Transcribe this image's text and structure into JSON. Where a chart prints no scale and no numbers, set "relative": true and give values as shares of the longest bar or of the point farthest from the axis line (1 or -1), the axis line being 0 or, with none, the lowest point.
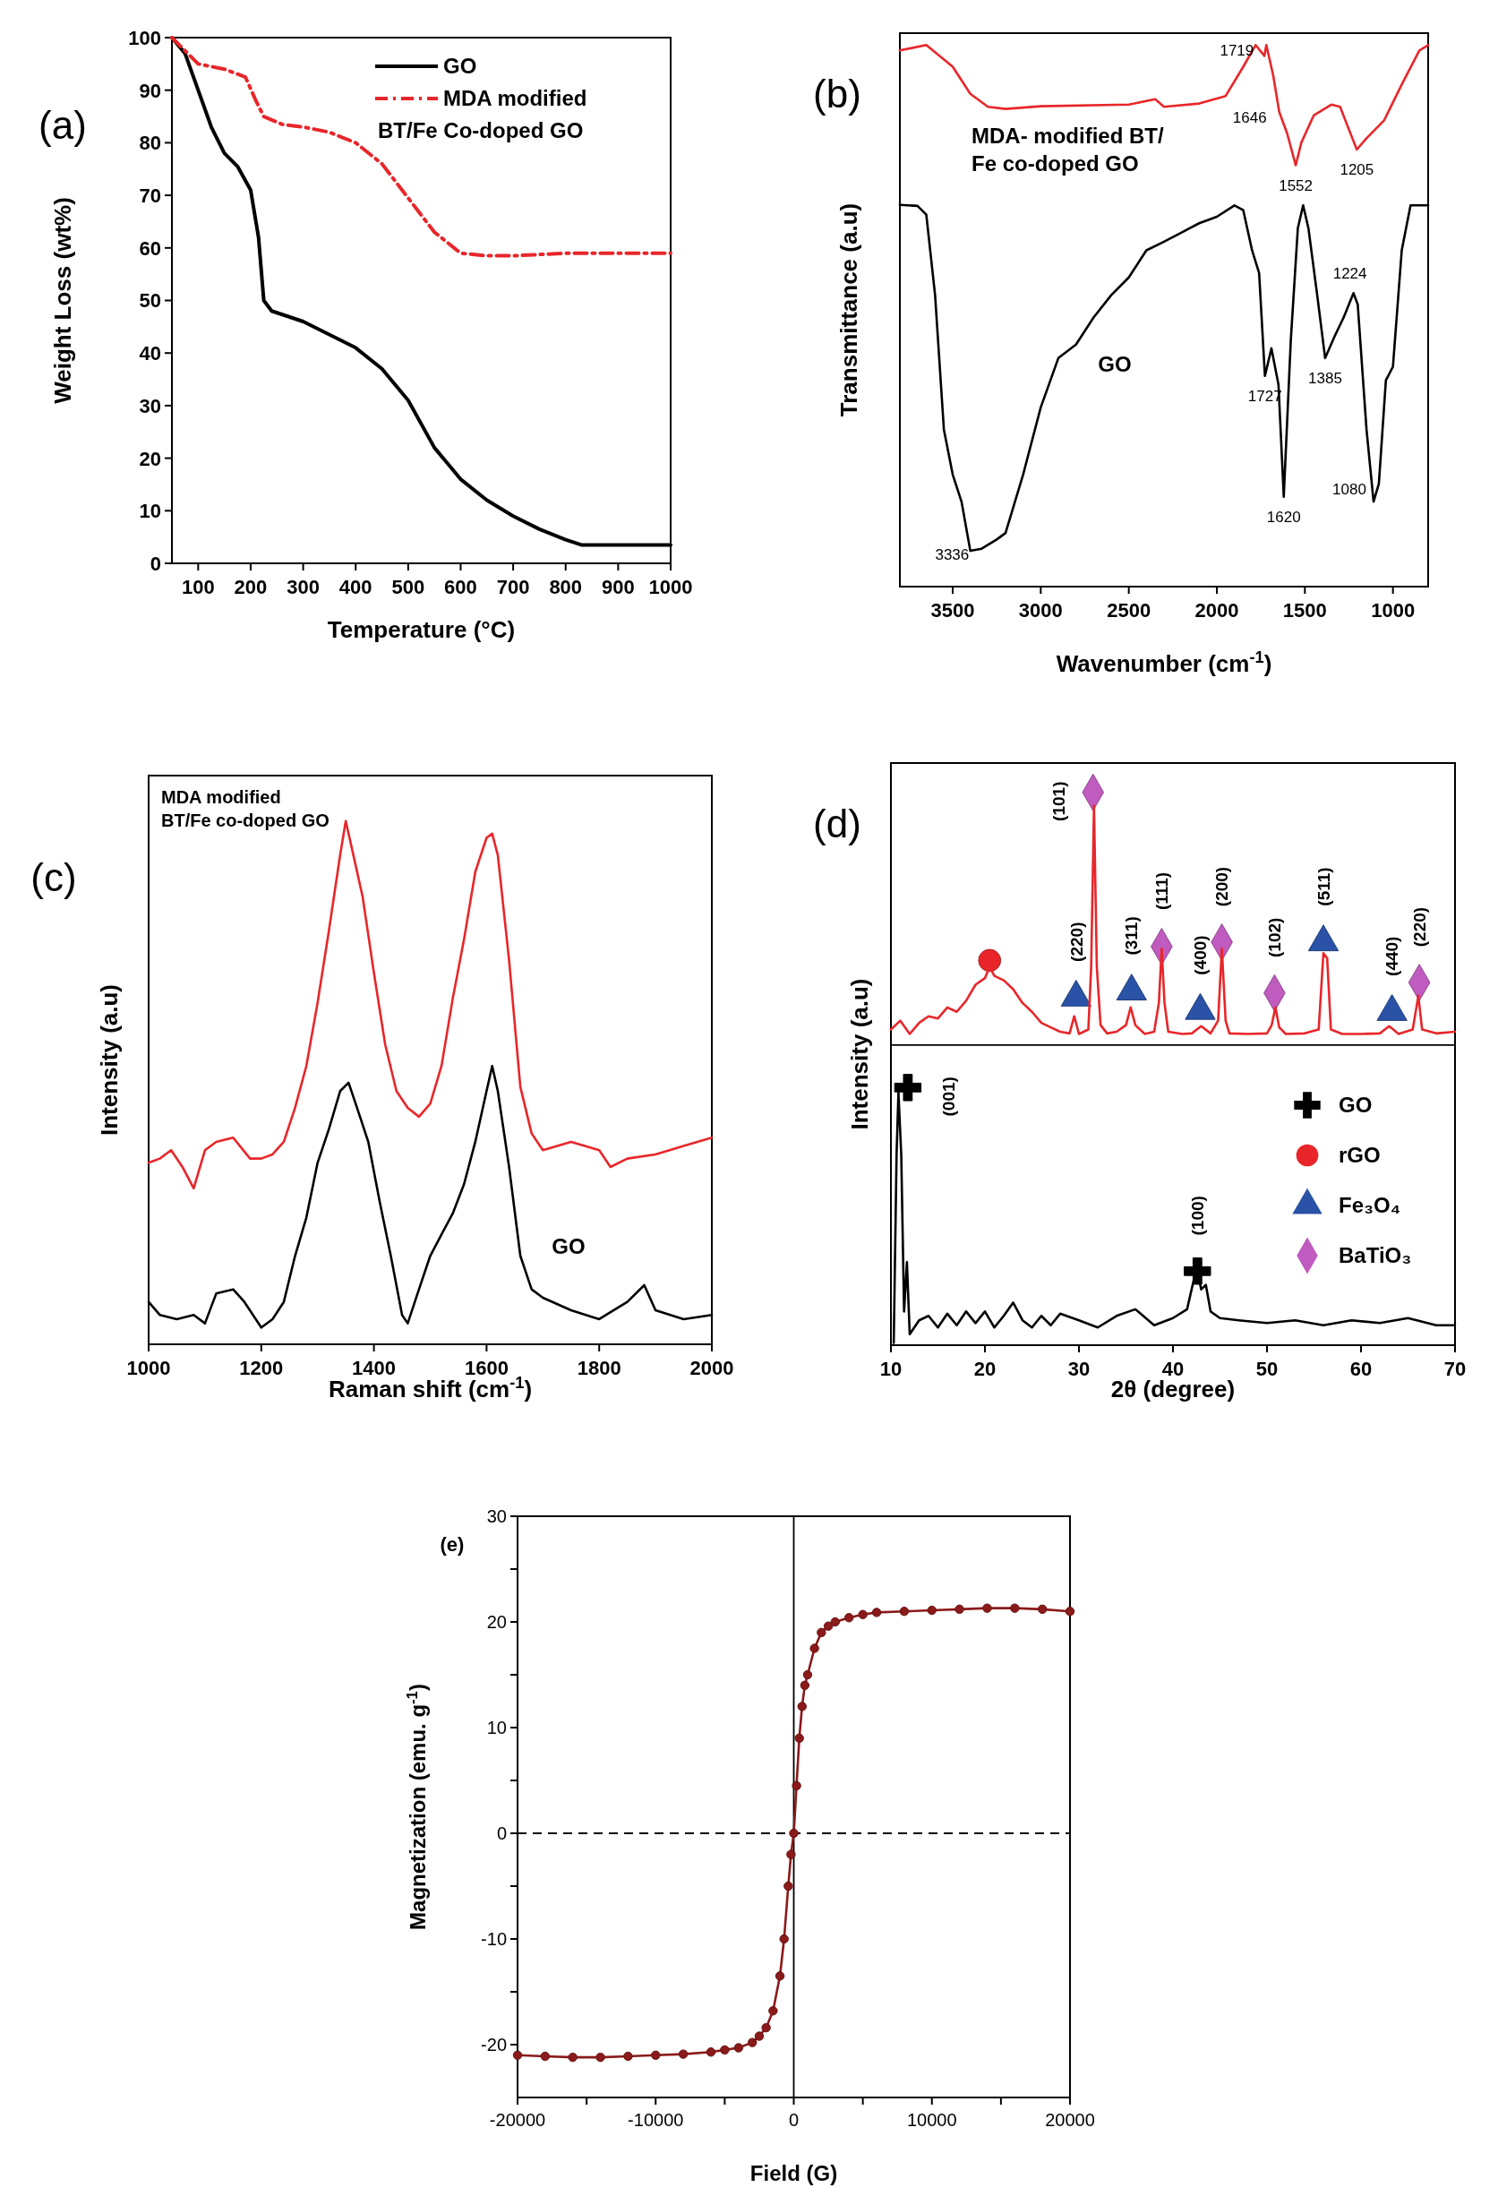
{
  "chart_data": [
    {
      "type": "line",
      "title": "(a)",
      "xlabel": "Temperature (°C)",
      "ylabel": "Weight Loss (wt%)",
      "xlim": [
        50,
        1000
      ],
      "xticks": [
        100,
        200,
        300,
        400,
        500,
        600,
        700,
        800,
        900,
        1000
      ],
      "ylim": [
        0,
        100
      ],
      "yticks": [
        0,
        10,
        20,
        30,
        40,
        50,
        60,
        70,
        80,
        90,
        100
      ],
      "legend": "top right",
      "series": [
        {
          "name": "GO",
          "color": "#000000",
          "line_style": "solid",
          "x": [
            50,
            75,
            100,
            125,
            150,
            175,
            200,
            215,
            225,
            240,
            300,
            400,
            450,
            500,
            550,
            600,
            650,
            700,
            750,
            800,
            830,
            900,
            1000
          ],
          "values": [
            100,
            97,
            90,
            83,
            78,
            75.5,
            71,
            62,
            50,
            48,
            46,
            41,
            37,
            31,
            22,
            16,
            12,
            9,
            6.5,
            4.5,
            3.5,
            3.5,
            3.5
          ]
        },
        {
          "name": "MDA modified BT/Fe Co-doped GO",
          "color": "#e8262a",
          "line_style": "dashed",
          "x": [
            50,
            100,
            150,
            190,
            210,
            225,
            260,
            300,
            350,
            400,
            450,
            500,
            550,
            600,
            650,
            700,
            800,
            900,
            1000
          ],
          "values": [
            100,
            95,
            94,
            92.5,
            88,
            85,
            83.5,
            83,
            82,
            80,
            76,
            69.5,
            63,
            59,
            58.5,
            58.5,
            59,
            59,
            59
          ]
        }
      ]
    },
    {
      "type": "line",
      "title": "(b)",
      "xlabel": "Wavenumber (cm$^{-1}$)",
      "ylabel": "Transmittance (a.u)",
      "relative": true,
      "xlim": [
        3800,
        800
      ],
      "xticks": [
        3500,
        3000,
        2500,
        2000,
        1500,
        1000
      ],
      "annotations": [
        {
          "text": "1719",
          "x": 1719,
          "y": 1.0
        },
        {
          "text": "1646",
          "x": 1646,
          "y": 0.877
        },
        {
          "text": "1552",
          "x": 1552,
          "y": 0.778
        },
        {
          "text": "1205",
          "x": 1205,
          "y": 0.807
        },
        {
          "text": "1224",
          "x": 1224,
          "y": 0.542
        },
        {
          "text": "1727",
          "x": 1727,
          "y": 0.389
        },
        {
          "text": "1385",
          "x": 1385,
          "y": 0.422
        },
        {
          "text": "1620",
          "x": 1620,
          "y": 0.166
        },
        {
          "text": "1080",
          "x": 1080,
          "y": 0.19
        },
        {
          "text": "3336",
          "x": 3336,
          "y": 0.07
        }
      ],
      "series": [
        {
          "name": "MDA- modified BT/ Fe co-doped GO",
          "color": "#e8262a",
          "x": [
            3800,
            3650,
            3500,
            3400,
            3300,
            3200,
            3000,
            2500,
            2350,
            2300,
            2100,
            1950,
            1850,
            1780,
            1730,
            1719,
            1680,
            1646,
            1600,
            1552,
            1520,
            1450,
            1350,
            1300,
            1250,
            1205,
            1150,
            1050,
            950,
            850,
            800
          ],
          "values": [
            0.99,
            1.0,
            0.96,
            0.91,
            0.886,
            0.882,
            0.887,
            0.89,
            0.9,
            0.886,
            0.892,
            0.906,
            0.96,
            1.0,
            0.98,
            1.0,
            0.944,
            0.877,
            0.836,
            0.778,
            0.82,
            0.87,
            0.89,
            0.886,
            0.844,
            0.807,
            0.828,
            0.861,
            0.927,
            0.99,
            1.0
          ]
        },
        {
          "name": "GO",
          "color": "#000000",
          "x": [
            3800,
            3700,
            3650,
            3600,
            3550,
            3500,
            3450,
            3400,
            3336,
            3250,
            3200,
            3100,
            3000,
            2900,
            2800,
            2700,
            2600,
            2500,
            2400,
            2300,
            2200,
            2100,
            2000,
            1900,
            1850,
            1800,
            1760,
            1727,
            1690,
            1650,
            1620,
            1580,
            1540,
            1510,
            1480,
            1430,
            1385,
            1330,
            1280,
            1224,
            1200,
            1150,
            1110,
            1080,
            1040,
            1000,
            950,
            900,
            850,
            800
          ],
          "values": [
            0.705,
            0.703,
            0.687,
            0.538,
            0.29,
            0.207,
            0.157,
            0.066,
            0.07,
            0.087,
            0.099,
            0.207,
            0.331,
            0.422,
            0.447,
            0.497,
            0.538,
            0.571,
            0.621,
            0.637,
            0.654,
            0.671,
            0.683,
            0.704,
            0.695,
            0.621,
            0.579,
            0.389,
            0.44,
            0.373,
            0.166,
            0.455,
            0.662,
            0.704,
            0.662,
            0.538,
            0.422,
            0.463,
            0.497,
            0.542,
            0.521,
            0.29,
            0.157,
            0.19,
            0.381,
            0.406,
            0.621,
            0.704,
            0.704,
            0.704
          ]
        }
      ]
    },
    {
      "type": "line",
      "title": "(c)",
      "xlabel": "Raman shift (cm$^{-1}$)",
      "ylabel": "Intensity (a.u)",
      "relative": true,
      "xlim": [
        1000,
        2000
      ],
      "xticks": [
        1000,
        1200,
        1400,
        1600,
        1800,
        2000
      ],
      "series": [
        {
          "name": "MDA modified BT/Fe co-doped GO",
          "color": "#e8262a",
          "x": [
            1000,
            1020,
            1040,
            1060,
            1080,
            1100,
            1120,
            1150,
            1180,
            1200,
            1220,
            1240,
            1260,
            1280,
            1300,
            1320,
            1340,
            1350,
            1360,
            1380,
            1400,
            1420,
            1440,
            1460,
            1480,
            1500,
            1520,
            1540,
            1560,
            1580,
            1600,
            1610,
            1620,
            1640,
            1660,
            1680,
            1700,
            1750,
            1800,
            1820,
            1850,
            1900,
            1950,
            2000
          ],
          "values": [
            0.347,
            0.355,
            0.371,
            0.339,
            0.298,
            0.371,
            0.387,
            0.395,
            0.355,
            0.355,
            0.363,
            0.387,
            0.452,
            0.532,
            0.653,
            0.79,
            0.935,
            1.0,
            0.952,
            0.855,
            0.71,
            0.573,
            0.484,
            0.452,
            0.435,
            0.46,
            0.532,
            0.661,
            0.774,
            0.903,
            0.968,
            0.976,
            0.935,
            0.734,
            0.492,
            0.403,
            0.371,
            0.387,
            0.371,
            0.339,
            0.355,
            0.363,
            0.379,
            0.395
          ]
        },
        {
          "name": "GO",
          "color": "#000000",
          "x": [
            1000,
            1020,
            1050,
            1080,
            1100,
            1120,
            1150,
            1170,
            1200,
            1220,
            1240,
            1260,
            1280,
            1300,
            1320,
            1340,
            1355,
            1370,
            1390,
            1410,
            1430,
            1450,
            1460,
            1480,
            1500,
            1520,
            1540,
            1560,
            1580,
            1600,
            1610,
            1620,
            1640,
            1660,
            1680,
            1700,
            1750,
            1800,
            1850,
            1880,
            1900,
            1950,
            2000
          ],
          "values": [
            0.081,
            0.056,
            0.048,
            0.056,
            0.04,
            0.097,
            0.105,
            0.081,
            0.032,
            0.048,
            0.081,
            0.169,
            0.242,
            0.347,
            0.411,
            0.484,
            0.5,
            0.452,
            0.387,
            0.274,
            0.169,
            0.056,
            0.04,
            0.105,
            0.169,
            0.21,
            0.25,
            0.306,
            0.387,
            0.484,
            0.532,
            0.484,
            0.339,
            0.169,
            0.105,
            0.089,
            0.065,
            0.048,
            0.081,
            0.113,
            0.065,
            0.048,
            0.056
          ]
        }
      ]
    },
    {
      "type": "line",
      "title": "(d)",
      "xlabel": "2θ (degree)",
      "ylabel": "Intensity (a.u)",
      "relative": true,
      "xlim": [
        10,
        70
      ],
      "xticks": [
        10,
        20,
        30,
        40,
        50,
        60,
        70
      ],
      "legend": "right",
      "ref_lines": [
        {
          "axis": "y",
          "value": 0.543,
          "color": "#000000",
          "line_style": "solid"
        }
      ],
      "annotations": [
        {
          "text": "(101)",
          "x": 31.5,
          "y": 1.0
        },
        {
          "text": "(220)",
          "x": 29.7,
          "y": 0.629
        },
        {
          "text": "(311)",
          "x": 35.6,
          "y": 0.64
        },
        {
          "text": "(111)",
          "x": 38.8,
          "y": 0.721
        },
        {
          "text": "(400)",
          "x": 42.9,
          "y": 0.605
        },
        {
          "text": "(200)",
          "x": 45.2,
          "y": 0.729
        },
        {
          "text": "(102)",
          "x": 50.8,
          "y": 0.637
        },
        {
          "text": "(511)",
          "x": 56.0,
          "y": 0.729
        },
        {
          "text": "(440)",
          "x": 63.3,
          "y": 0.603
        },
        {
          "text": "(220)",
          "x": 66.2,
          "y": 0.656
        },
        {
          "text": "(001)",
          "x": 11.8,
          "y": 0.466
        },
        {
          "text": "(100)",
          "x": 42.6,
          "y": 0.134
        }
      ],
      "series": [
        {
          "color": "#e8262a",
          "x": [
            10,
            11,
            12,
            13,
            14,
            15,
            16,
            17,
            18,
            19,
            20,
            20.5,
            21,
            22,
            23,
            24,
            25,
            26,
            27,
            28,
            29,
            29.5,
            30,
            31,
            31.3,
            31.6,
            31.9,
            32.3,
            33,
            34,
            35,
            35.5,
            36,
            37,
            38,
            38.5,
            38.8,
            39.1,
            39.5,
            41,
            42,
            43,
            44,
            44.8,
            45.2,
            45.6,
            46,
            48,
            50,
            50.5,
            50.9,
            51.3,
            52,
            54,
            55.5,
            56,
            56.4,
            56.8,
            58,
            60,
            62,
            63,
            64,
            65.5,
            66.1,
            66.5,
            68,
            70
          ],
          "values": [
            0.571,
            0.587,
            0.563,
            0.583,
            0.595,
            0.591,
            0.611,
            0.603,
            0.623,
            0.652,
            0.664,
            0.684,
            0.668,
            0.66,
            0.644,
            0.619,
            0.603,
            0.583,
            0.575,
            0.567,
            0.564,
            0.595,
            0.563,
            0.571,
            0.684,
            0.976,
            0.684,
            0.579,
            0.564,
            0.567,
            0.579,
            0.611,
            0.579,
            0.563,
            0.567,
            0.619,
            0.717,
            0.619,
            0.567,
            0.563,
            0.564,
            0.577,
            0.564,
            0.587,
            0.717,
            0.587,
            0.564,
            0.563,
            0.564,
            0.579,
            0.611,
            0.575,
            0.563,
            0.564,
            0.571,
            0.709,
            0.7,
            0.571,
            0.563,
            0.563,
            0.564,
            0.577,
            0.563,
            0.571,
            0.632,
            0.571,
            0.564,
            0.567
          ]
        },
        {
          "color": "#000000",
          "x": [
            10.3,
            10.6,
            10.8,
            11.1,
            11.4,
            11.7,
            12,
            13,
            14,
            15,
            16,
            17,
            18,
            19,
            20,
            21,
            22,
            23,
            24,
            25,
            26,
            27,
            28,
            30,
            32,
            34,
            36,
            38,
            40,
            41.5,
            42.2,
            42.6,
            43,
            43.5,
            44,
            45,
            47,
            50,
            53,
            56,
            59,
            62,
            65,
            68,
            70
          ],
          "values": [
            0.004,
            0.344,
            0.457,
            0.344,
            0.061,
            0.15,
            0.02,
            0.045,
            0.053,
            0.032,
            0.057,
            0.036,
            0.061,
            0.04,
            0.061,
            0.032,
            0.053,
            0.077,
            0.045,
            0.032,
            0.053,
            0.036,
            0.057,
            0.045,
            0.032,
            0.053,
            0.065,
            0.036,
            0.049,
            0.065,
            0.117,
            0.134,
            0.101,
            0.109,
            0.061,
            0.049,
            0.045,
            0.04,
            0.045,
            0.036,
            0.045,
            0.04,
            0.049,
            0.036,
            0.036
          ]
        },
        {
          "type": "scatter",
          "name": "GO",
          "color": "#000000",
          "marker": "cross",
          "x": [
            11.8,
            42.6
          ],
          "values": [
            0.466,
            0.134
          ]
        },
        {
          "type": "scatter",
          "name": "rGO",
          "color": "#e8262a",
          "marker": "circle",
          "x": [
            20.5
          ],
          "values": [
            0.696
          ]
        },
        {
          "type": "scatter",
          "name": "Fe₃O₄",
          "color": "#2a52a6",
          "marker": "triangle",
          "x": [
            29.7,
            35.6,
            42.9,
            56.0,
            63.3
          ],
          "values": [
            0.629,
            0.64,
            0.605,
            0.729,
            0.603
          ]
        },
        {
          "type": "scatter",
          "name": "BaTiO₃",
          "color": "#c05bbf",
          "marker": "diamond",
          "x": [
            31.5,
            38.8,
            45.2,
            50.8,
            66.2
          ],
          "values": [
            1.0,
            0.721,
            0.729,
            0.637,
            0.656
          ]
        }
      ]
    },
    {
      "type": "line",
      "title": "(e)",
      "xlabel": "Field (G)",
      "ylabel": "Magnetization (emu. g$^{-1}$)",
      "xlim": [
        -20000,
        20000
      ],
      "xticks": [
        -20000,
        {
          "value": -15000,
          "label": null
        },
        -10000,
        {
          "value": -5000,
          "label": null
        },
        0,
        {
          "value": 5000,
          "label": null
        },
        10000,
        {
          "value": 15000,
          "label": null
        },
        20000
      ],
      "ylim": [
        -25,
        30
      ],
      "yticks": [
        -20,
        {
          "value": -15,
          "label": null
        },
        -10,
        {
          "value": -5,
          "label": null
        },
        0,
        {
          "value": 5,
          "label": null
        },
        10,
        {
          "value": 15,
          "label": null
        },
        20,
        {
          "value": 25,
          "label": null
        },
        30
      ],
      "marker": "circle",
      "ref_lines": [
        {
          "axis": "y",
          "value": 0,
          "color": "#000000",
          "line_style": "dashed"
        },
        {
          "axis": "x",
          "value": 0,
          "color": "#000000",
          "line_style": "solid"
        }
      ],
      "series": [
        {
          "color": "#8b1a1a",
          "x": [
            -20000,
            -18000,
            -16000,
            -14000,
            -12000,
            -10000,
            -8000,
            -6000,
            -5000,
            -4000,
            -3000,
            -2500,
            -2000,
            -1500,
            -1000,
            -700,
            -400,
            -200,
            0,
            200,
            400,
            600,
            800,
            1000,
            1500,
            2000,
            2500,
            3000,
            4000,
            5000,
            6000,
            8000,
            10000,
            12000,
            14000,
            16000,
            18000,
            20000
          ],
          "values": [
            -21.0,
            -21.1,
            -21.2,
            -21.2,
            -21.1,
            -21.0,
            -20.9,
            -20.7,
            -20.5,
            -20.3,
            -19.8,
            -19.2,
            -18.4,
            -16.8,
            -13.5,
            -10,
            -5,
            -2,
            0,
            4.5,
            9,
            12,
            14,
            15,
            17.5,
            19,
            19.6,
            20,
            20.4,
            20.7,
            20.9,
            21.0,
            21.1,
            21.2,
            21.3,
            21.3,
            21.2,
            21.0
          ]
        }
      ]
    }
  ]
}
